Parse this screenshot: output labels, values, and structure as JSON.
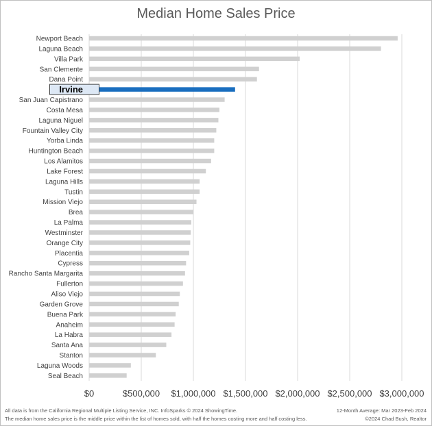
{
  "chart_data": {
    "type": "bar",
    "orientation": "horizontal",
    "title": "Median Home Sales Price",
    "categories": [
      "Newport Beach",
      "Laguna Beach",
      "Villa Park",
      "San Clemente",
      "Dana Point",
      "Irvine",
      "San Juan Capistrano",
      "Costa Mesa",
      "Laguna Niguel",
      "Fountain Valley City",
      "Yorba Linda",
      "Huntington Beach",
      "Los Alamitos",
      "Lake Forest",
      "Laguna Hills",
      "Tustin",
      "Mission Viejo",
      "Brea",
      "La Palma",
      "Westminster",
      "Orange City",
      "Placentia",
      "Cypress",
      "Rancho Santa Margarita",
      "Fullerton",
      "Aliso Viejo",
      "Garden Grove",
      "Buena Park",
      "Anaheim",
      "La Habra",
      "Santa Ana",
      "Stanton",
      "Laguna Woods",
      "Seal Beach"
    ],
    "values": [
      2960000,
      2800000,
      2020000,
      1630000,
      1610000,
      1400000,
      1300000,
      1250000,
      1240000,
      1220000,
      1200000,
      1200000,
      1170000,
      1120000,
      1060000,
      1060000,
      1030000,
      1000000,
      980000,
      975000,
      970000,
      960000,
      930000,
      920000,
      900000,
      870000,
      860000,
      830000,
      820000,
      790000,
      740000,
      640000,
      400000,
      360000
    ],
    "highlight": "Irvine",
    "xlim": [
      0,
      3000000
    ],
    "xticks": [
      "$0",
      "$500,000",
      "$1,000,000",
      "$1,500,000",
      "$2,000,000",
      "$2,500,000",
      "$3,000,000"
    ],
    "grid": true,
    "colors": {
      "bar": "#d0d0d0",
      "highlight": "#1a6ebf",
      "grid": "#d9d9d9"
    }
  },
  "footer": {
    "left_line1": "All data is from the California Regional Multiple Listing Service, INC. InfoSparks © 2024 ShowingTime.",
    "left_line2": "The median home sales price is the middle price within the list of homes sold, with half the homes costing more and half costing less.",
    "right_line1": "12-Month Average: Mar 2023-Feb 2024",
    "right_line2": "©2024 Chad Bush, Realtor"
  }
}
